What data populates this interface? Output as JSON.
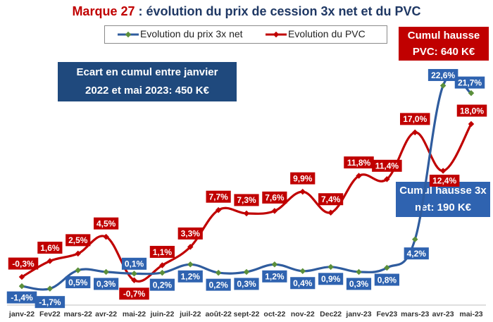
{
  "title": {
    "brand": "Marque 27",
    "rest": " : évolution du prix de cession 3x net et du PVC"
  },
  "legend": {
    "series1": "Evolution du prix 3x net",
    "series2": "Evolution du PVC"
  },
  "annotations": {
    "ecart_line1": "Ecart en cumul entre janvier",
    "ecart_line2": "2022 et mai 2023: 450 K€",
    "pvc_line1": "Cumul hausse",
    "pvc_line2": "PVC: 640 K€",
    "net_line1": "Cumul hausse 3x",
    "net_line2": "net: 190 K€"
  },
  "colors": {
    "pvc_line": "#c00000",
    "net_line": "#2f5c9e",
    "net_marker": "#5b8f3a",
    "pvc_label": "#c00000",
    "net_label": "#2f63b0"
  },
  "chart_data": {
    "type": "line",
    "categories": [
      "janv-22",
      "Fev22",
      "mars-22",
      "avr-22",
      "mai-22",
      "juin-22",
      "juil-22",
      "août-22",
      "sept-22",
      "oct-22",
      "nov-22",
      "Dec22",
      "janv-23",
      "Fev23",
      "mars-23",
      "avr-23",
      "mai-23"
    ],
    "ylim": [
      -2,
      24
    ],
    "series": [
      {
        "name": "Evolution du prix 3x net",
        "values": [
          -1.4,
          -1.7,
          0.5,
          0.3,
          0.1,
          0.2,
          1.2,
          0.2,
          0.3,
          1.2,
          0.4,
          0.9,
          0.3,
          0.8,
          4.2,
          22.6,
          21.7
        ],
        "labels": [
          "-1,4%",
          "-1,7%",
          "0,5%",
          "0,3%",
          "0,1%",
          "0,2%",
          "1,2%",
          "0,2%",
          "0,3%",
          "1,2%",
          "0,4%",
          "0,9%",
          "0,3%",
          "0,8%",
          "4,2%",
          "22,6%",
          "21,7%"
        ]
      },
      {
        "name": "Evolution du PVC",
        "values": [
          -0.3,
          1.6,
          2.5,
          4.5,
          -0.7,
          1.1,
          3.3,
          7.7,
          7.3,
          7.6,
          9.9,
          7.4,
          11.8,
          11.4,
          17.0,
          12.4,
          18.0
        ],
        "labels": [
          "-0,3%",
          "1,6%",
          "2,5%",
          "4,5%",
          "-0,7%",
          "1,1%",
          "3,3%",
          "7,7%",
          "7,3%",
          "7,6%",
          "9,9%",
          "7,4%",
          "11,8%",
          "11,4%",
          "17,0%",
          "12,4%",
          "18,0%"
        ]
      }
    ]
  }
}
